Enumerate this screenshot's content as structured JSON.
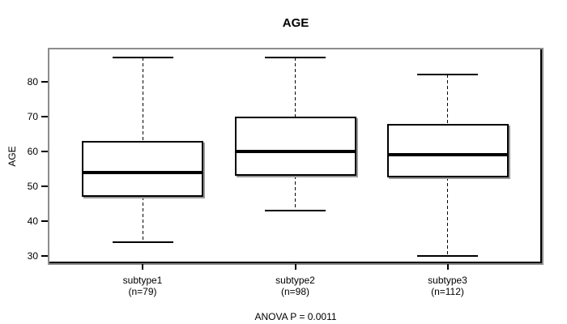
{
  "chart_data": {
    "type": "boxplot",
    "title": "AGE",
    "ylabel": "AGE",
    "xlabel": "",
    "annotation": "ANOVA P = 0.0011",
    "ylim": [
      27.4,
      89.8
    ],
    "yticks": [
      30,
      40,
      50,
      60,
      70,
      80
    ],
    "grid": false,
    "groups": [
      {
        "label": "subtype1",
        "n_label": "(n=79)",
        "n": 79,
        "whisker_low": 34,
        "q1": 47,
        "median": 54,
        "q3": 63,
        "whisker_high": 87
      },
      {
        "label": "subtype2",
        "n_label": "(n=98)",
        "n": 98,
        "whisker_low": 43,
        "q1": 53,
        "median": 60,
        "q3": 70,
        "whisker_high": 87
      },
      {
        "label": "subtype3",
        "n_label": "(n=112)",
        "n": 112,
        "whisker_low": 30,
        "q1": 52.5,
        "median": 59,
        "q3": 68,
        "whisker_high": 82
      }
    ],
    "colors": {
      "line": "#000000",
      "frame": "#8c8c8c",
      "shadow": "#999999",
      "box_fill": "#ffffff",
      "background": "#ffffff"
    }
  }
}
